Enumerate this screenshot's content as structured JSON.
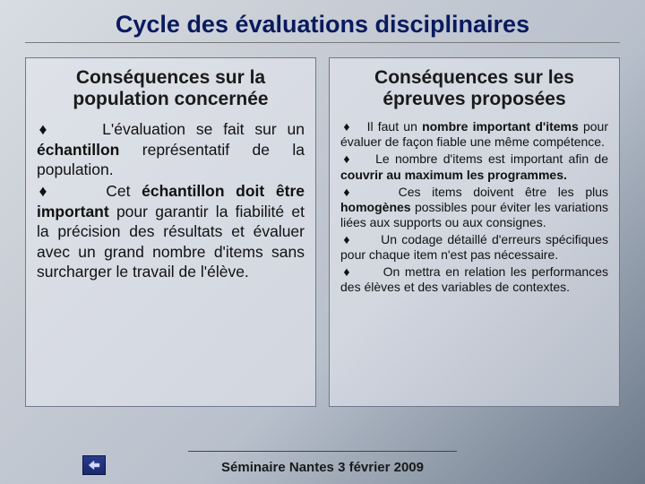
{
  "title": "Cycle des évaluations disciplinaires",
  "columns": {
    "left": {
      "heading": "Conséquences sur la population concernée",
      "body_html": "<p><span class='diamond'>♦</span>&nbsp;&nbsp;&nbsp;&nbsp;&nbsp;L'évaluation se fait sur un <b>échantillon</b> représentatif de la population.</p><p><span class='diamond'>♦</span>&nbsp;&nbsp;&nbsp;&nbsp;&nbsp;Cet <b>échantillon doit être important</b> pour garantir la fiabilité et la précision des résultats et évaluer avec un grand nombre d'items sans surcharger le travail de l'élève.</p>"
    },
    "right": {
      "heading": "Conséquences sur les épreuves proposées",
      "body_html": "<p><span class='diamond'>♦</span>&nbsp;&nbsp;&nbsp;Il faut un <b>nombre important d'items</b> pour évaluer de façon fiable une même compétence.</p><p><span class='diamond'>♦</span>&nbsp;&nbsp;&nbsp;&nbsp;Le nombre d'items est important afin de <b>couvrir au maximum les programmes.</b></p><p><span class='diamond'>♦</span>&nbsp;&nbsp;&nbsp;&nbsp;Ces items doivent être les plus <b>homogènes</b> possibles pour éviter les variations liées aux supports ou aux consignes.</p><p><span class='diamond'>♦</span>&nbsp;&nbsp;&nbsp;&nbsp;&nbsp;&nbsp;Un codage détaillé d'erreurs spécifiques pour chaque item n'est pas nécessaire.</p><p><span class='diamond'>♦</span>&nbsp;&nbsp;&nbsp;&nbsp;&nbsp;&nbsp;On mettra en relation les performances des élèves et des variables de contextes.</p>"
    }
  },
  "footer": "Séminaire Nantes 3 février 2009"
}
